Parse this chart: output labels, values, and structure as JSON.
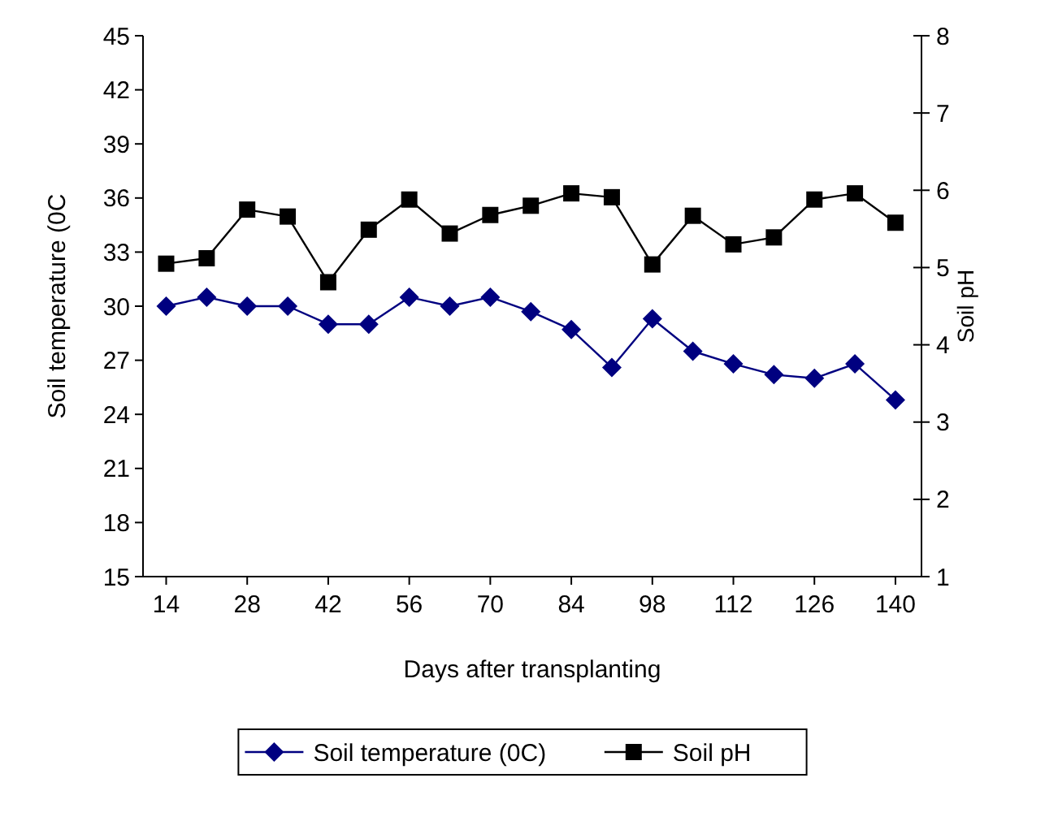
{
  "chart_data": {
    "type": "line",
    "xlabel": "Days after transplanting",
    "ylabel": "Soil temperature (0C",
    "y2label": "Soil pH",
    "x": [
      14,
      21,
      28,
      35,
      42,
      49,
      56,
      63,
      70,
      77,
      84,
      91,
      98,
      105,
      112,
      119,
      126,
      133,
      140
    ],
    "xlim": [
      10,
      144.5
    ],
    "xticks": [
      14,
      28,
      42,
      56,
      70,
      84,
      98,
      112,
      126,
      140
    ],
    "ylim": [
      15,
      45
    ],
    "yticks": [
      15,
      18,
      21,
      24,
      27,
      30,
      33,
      36,
      39,
      42,
      45
    ],
    "y2lim": [
      1,
      8
    ],
    "y2ticks": [
      1,
      2,
      3,
      4,
      5,
      6,
      7,
      8
    ],
    "legend": "bottom",
    "line_style": "solid",
    "series": [
      {
        "name": "Soil temperature (0C)",
        "color": "#000080",
        "marker": "diamond",
        "values": [
          30,
          30.5,
          30,
          30,
          29,
          29,
          30.5,
          30,
          30.5,
          29.7,
          28.7,
          26.6,
          29.3,
          27.5,
          26.8,
          26.2,
          26,
          26.8,
          24.8
        ]
      },
      {
        "name": "Soil pH",
        "color": "#000000",
        "marker": "square",
        "axis": "y2",
        "values": [
          5.05,
          5.12,
          5.75,
          5.66,
          4.81,
          5.49,
          5.88,
          5.44,
          5.68,
          5.8,
          5.96,
          5.91,
          5.04,
          5.67,
          5.3,
          5.39,
          5.88,
          5.96,
          5.58
        ]
      }
    ]
  }
}
